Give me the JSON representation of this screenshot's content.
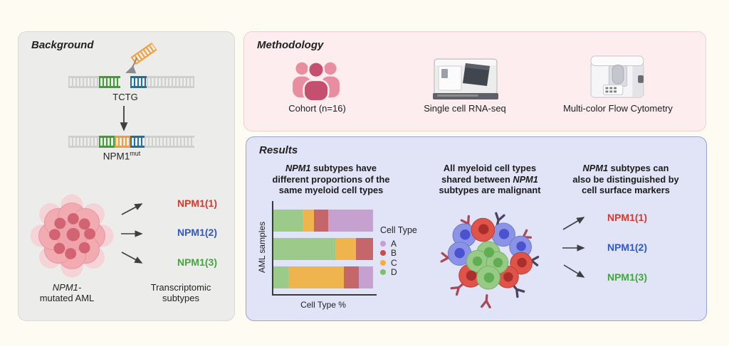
{
  "background_panel": {
    "title": "Background",
    "insert_sequence_label": "TCTG",
    "mutated_gene_label": "NPM1",
    "mutated_gene_superscript": "mut",
    "aml_label_line1": "NPM1-",
    "aml_label_line2": "mutated AML",
    "subtype_group_label_line1": "Transcriptomic",
    "subtype_group_label_line2": "subtypes",
    "subtypes": [
      {
        "label": "NPM1(1)",
        "color": "#d43a2e"
      },
      {
        "label": "NPM1(2)",
        "color": "#3058c8"
      },
      {
        "label": "NPM1(3)",
        "color": "#43a63c"
      }
    ],
    "dna_colors": {
      "insert_orange": "#f29c38",
      "flank_green": "#3f9e34",
      "flank_blue": "#20719b",
      "backbone_gray": "#cfcfcd"
    }
  },
  "methodology_panel": {
    "title": "Methodology",
    "items": [
      {
        "label": "Cohort (n=16)",
        "icon": "cohort-people-icon"
      },
      {
        "label": "Single cell RNA-seq",
        "icon": "sequencer-machine-icon"
      },
      {
        "label": "Multi-color Flow Cytometry",
        "icon": "flow-cytometer-icon"
      }
    ]
  },
  "results_panel": {
    "title": "Results",
    "column1": {
      "heading_italic": "NPM1",
      "heading_line1_rest": " subtypes have",
      "heading_line2": "different proportions of the",
      "heading_line3": "same myeloid cell types"
    },
    "column2": {
      "heading_line1": "All myeloid cell types",
      "heading_line2_pre": "shared between ",
      "heading_line2_italic": "NPM1",
      "heading_line3": "subtypes are malignant",
      "icon": "malignant-cell-cluster-icon"
    },
    "column3": {
      "heading_italic": "NPM1",
      "heading_line1_rest": " subtypes can",
      "heading_line2": "also be distinguished by",
      "heading_line3": "cell surface markers",
      "subtypes": [
        {
          "label": "NPM1(1)",
          "color": "#d43a2e"
        },
        {
          "label": "NPM1(2)",
          "color": "#3058c8"
        },
        {
          "label": "NPM1(3)",
          "color": "#43a63c"
        }
      ]
    }
  },
  "chart_data": {
    "type": "bar",
    "variant": "horizontal-stacked",
    "title": "",
    "xlabel": "Cell Type %",
    "ylabel": "AML samples",
    "xlim": [
      0,
      100
    ],
    "grid": false,
    "legend_title": "Cell Type",
    "legend_position": "right",
    "categories": [
      "bar 1 (top)",
      "bar 2 (middle)",
      "bar 3 (bottom)"
    ],
    "stack_order": [
      "D",
      "C",
      "B",
      "A"
    ],
    "legend_order": [
      "A",
      "B",
      "C",
      "D"
    ],
    "series": [
      {
        "name": "D",
        "color": "#9bca8b",
        "dot_color": "#79c167",
        "values": [
          29,
          62,
          15
        ]
      },
      {
        "name": "C",
        "color": "#f0b44f",
        "dot_color": "#f3ae3e",
        "values": [
          12,
          21,
          56
        ]
      },
      {
        "name": "B",
        "color": "#c5666b",
        "dot_color": "#cb4a4b",
        "values": [
          14,
          17,
          15
        ]
      },
      {
        "name": "A",
        "color": "#c6a0ce",
        "dot_color": "#c69fd2",
        "values": [
          45,
          0,
          14
        ]
      }
    ]
  }
}
